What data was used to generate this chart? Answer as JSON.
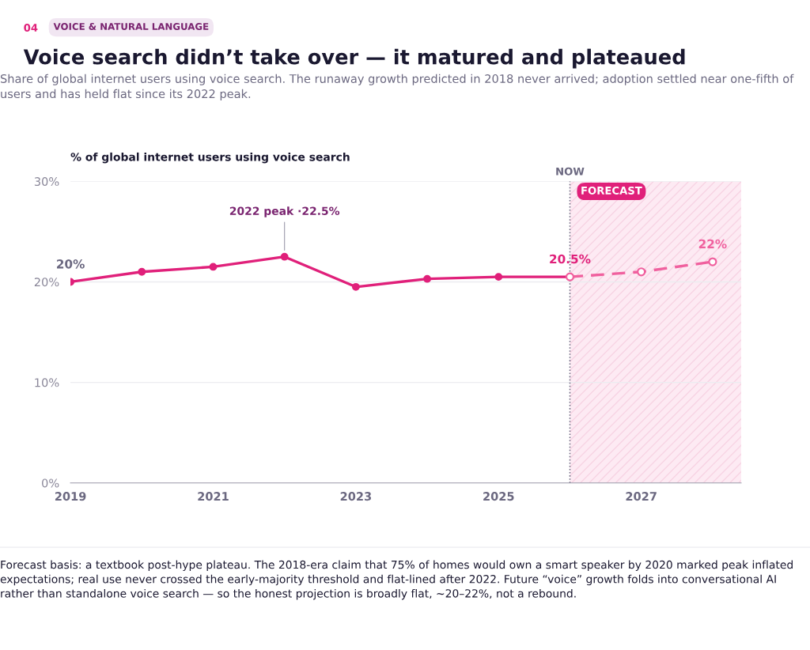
{
  "chart_data": {
    "type": "line",
    "title": "Voice search didn’t take over — it matured and plateaued",
    "subtitle": "Share of global internet users using voice search. The runaway growth predicted in 2018 never arrived; adoption settled near one-fifth of users and has held flat since its 2022 peak.",
    "ylabel": "% of global internet users using voice search",
    "series": [
      {
        "color": "#e0207a",
        "line_style": "solid",
        "x": [
          2019,
          2020,
          2021,
          2022,
          2023,
          2024,
          2025,
          2026
        ],
        "values": [
          20.0,
          21.0,
          21.5,
          22.5,
          19.5,
          20.3,
          20.5,
          20.5
        ],
        "value_labels": [
          "20%",
          null,
          null,
          null,
          null,
          null,
          null,
          "20.5%"
        ]
      },
      {
        "color": "#f0609e",
        "line_style": "dashed",
        "x": [
          2026,
          2027,
          2028
        ],
        "values": [
          20.5,
          21.0,
          22.0
        ],
        "value_labels": [
          null,
          null,
          "22%"
        ]
      }
    ],
    "xlim": [
      2019,
      2028.4
    ],
    "xticks": [
      2019,
      2021,
      2023,
      2025,
      2027
    ],
    "ylim": [
      0,
      30
    ],
    "yticks": [
      {
        "value": 0,
        "label": "0%"
      },
      {
        "value": 10,
        "label": "10%"
      },
      {
        "value": 20,
        "label": "20%"
      },
      {
        "value": 30,
        "label": "30%"
      }
    ],
    "grid": "y",
    "marker": "circle",
    "ref_lines": [
      {
        "axis": "x",
        "value": 2026,
        "label": "NOW",
        "color": "#6b6880",
        "line_style": "dotted"
      }
    ],
    "bands": [
      {
        "axis": "x",
        "from": 2026,
        "to": 2028.4,
        "label": "FORECAST",
        "color": "#fdeaf3"
      }
    ],
    "annotations": [
      "04",
      "VOICE & NATURAL LANGUAGE",
      {
        "text": "2022 peak ·22.5%",
        "x": 2022,
        "y": 22.5
      },
      "Forecast basis: a textbook post-hype plateau. The 2018-era claim that 75% of homes would own a smart speaker by 2020 marked peak inflated expectations; real use never crossed the early-majority threshold and flat-lined after 2022. Future “voice” growth folds into conversational AI rather than standalone voice search — so the honest projection is broadly flat, ~20–22%, not a rebound."
    ]
  }
}
